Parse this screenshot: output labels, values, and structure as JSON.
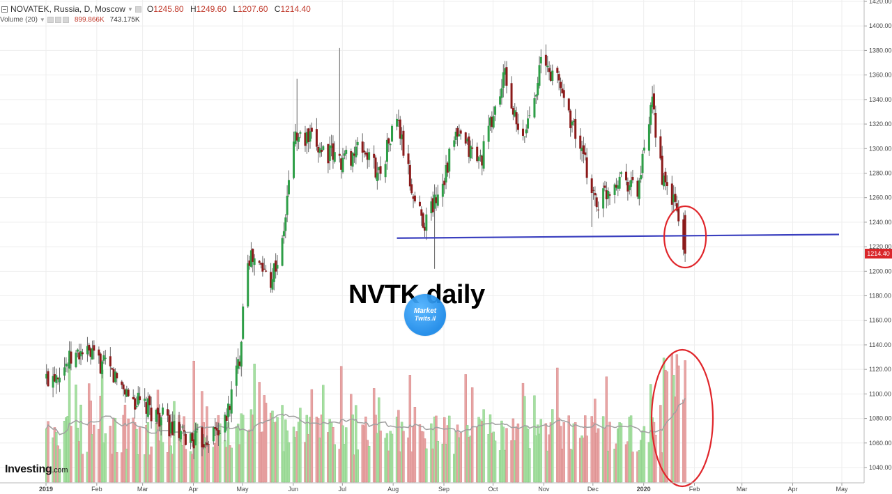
{
  "header": {
    "symbol_line": "NOVATEK, Russia, D, Moscow",
    "ohlc": {
      "open_label": "O",
      "open": "1245.80",
      "high_label": "H",
      "high": "1249.60",
      "low_label": "L",
      "low": "1207.60",
      "close_label": "C",
      "close": "1214.40"
    },
    "volume_label": "Volume (20)",
    "volume_value": "899.866K",
    "volume_ma": "743.175K"
  },
  "brand": {
    "name": "Investing",
    "suffix": ".com"
  },
  "annotation": {
    "title": "NVTK daily"
  },
  "watermark": {
    "line1": "Market",
    "line2": "Twits.il"
  },
  "price_tag": "1214.40",
  "colors": {
    "up": "#2e9e47",
    "down": "#8b1a1a",
    "volume_up": "#a5e0a0",
    "volume_down": "#e8a4a4",
    "volume_ma": "#a0a0a0",
    "trendline": "#3a3fbf",
    "circle": "#e0262b",
    "grid": "#eeeeee",
    "price_tag": "#d9262a"
  },
  "icons": [
    "collapse-toggle-icon",
    "dropdown-caret-icon",
    "settings-square-icon"
  ],
  "chart_data": {
    "type": "candlestick",
    "title": "NVTK daily",
    "y_axis": {
      "ylim": [
        1030,
        1420
      ],
      "ticks": [
        "1040.00",
        "1060.00",
        "1080.00",
        "1100.00",
        "1120.00",
        "1140.00",
        "1160.00",
        "1180.00",
        "1200.00",
        "1220.00",
        "1240.00",
        "1260.00",
        "1280.00",
        "1300.00",
        "1320.00",
        "1340.00",
        "1360.00",
        "1380.00",
        "1400.00",
        "1420.00"
      ]
    },
    "x_axis": {
      "labels": [
        "2019",
        "Feb",
        "Mar",
        "Apr",
        "May",
        "Jun",
        "Jul",
        "Aug",
        "Sep",
        "Oct",
        "Nov",
        "Dec",
        "2020",
        "Feb",
        "Mar",
        "Apr",
        "May"
      ],
      "bold": [
        "2019",
        "2020"
      ]
    },
    "grid": true,
    "waypoints": [
      [
        "2019-01-01",
        1110
      ],
      [
        "2019-01-25",
        1135
      ],
      [
        "2019-02-10",
        1120
      ],
      [
        "2019-02-25",
        1095
      ],
      [
        "2019-03-15",
        1080
      ],
      [
        "2019-03-25",
        1065
      ],
      [
        "2019-04-08",
        1062
      ],
      [
        "2019-04-22",
        1075
      ],
      [
        "2019-05-01",
        1130
      ],
      [
        "2019-05-05",
        1215
      ],
      [
        "2019-05-12",
        1205
      ],
      [
        "2019-05-20",
        1195
      ],
      [
        "2019-05-27",
        1220
      ],
      [
        "2019-06-03",
        1310
      ],
      [
        "2019-06-15",
        1305
      ],
      [
        "2019-07-01",
        1290
      ],
      [
        "2019-07-15",
        1300
      ],
      [
        "2019-07-25",
        1280
      ],
      [
        "2019-08-05",
        1325
      ],
      [
        "2019-08-15",
        1260
      ],
      [
        "2019-08-22",
        1240
      ],
      [
        "2019-09-01",
        1270
      ],
      [
        "2019-09-10",
        1310
      ],
      [
        "2019-09-25",
        1290
      ],
      [
        "2019-10-10",
        1360
      ],
      [
        "2019-10-20",
        1300
      ],
      [
        "2019-11-01",
        1370
      ],
      [
        "2019-11-12",
        1355
      ],
      [
        "2019-11-25",
        1300
      ],
      [
        "2019-12-05",
        1255
      ],
      [
        "2019-12-20",
        1280
      ],
      [
        "2019-12-30",
        1265
      ],
      [
        "2020-01-08",
        1335
      ],
      [
        "2020-01-15",
        1270
      ],
      [
        "2020-01-22",
        1255
      ],
      [
        "2020-01-28",
        1214
      ]
    ],
    "last_candle": {
      "date": "2020-01-28",
      "open": 1245.8,
      "high": 1249.6,
      "low": 1207.6,
      "close": 1214.4
    },
    "volume": {
      "ma_period": 20,
      "last": 899866,
      "ma_last": 743175
    },
    "trendline": {
      "from": [
        "2019-08-05",
        1227
      ],
      "to": [
        "2020-05-01",
        1230
      ]
    },
    "highlight_circles": [
      {
        "date": "2020-01-28",
        "panel": "price",
        "center_value": 1228
      },
      {
        "date": "2020-01-22",
        "panel": "volume"
      }
    ]
  }
}
